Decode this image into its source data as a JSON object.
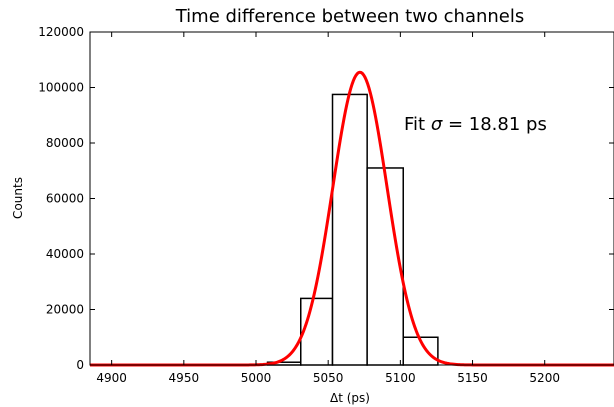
{
  "chart_data": {
    "type": "bar",
    "title": "Time difference between two channels",
    "xlabel": "Δt (ps)",
    "ylabel": "Counts",
    "xlim": [
      4885,
      5248
    ],
    "ylim": [
      0,
      120000
    ],
    "xticks": [
      4900,
      4950,
      5000,
      5050,
      5100,
      5150,
      5200
    ],
    "yticks": [
      0,
      20000,
      40000,
      60000,
      80000,
      100000,
      120000
    ],
    "histogram": {
      "bin_edges": [
        5008,
        5031,
        5053,
        5077,
        5102,
        5126
      ],
      "counts": [
        1000,
        24000,
        97500,
        71000,
        10000
      ],
      "edge_color": "#000000",
      "fill_color": "#ffffff"
    },
    "fit": {
      "type": "gaussian",
      "mean": 5072,
      "sigma": 18.81,
      "amplitude": 105500,
      "x_range": [
        4885,
        5248
      ],
      "color": "#ff0000"
    },
    "annotation": {
      "prefix": "Fit ",
      "symbol": "σ",
      "suffix": " = 18.81 ps"
    },
    "grid": false,
    "legend": "none"
  }
}
